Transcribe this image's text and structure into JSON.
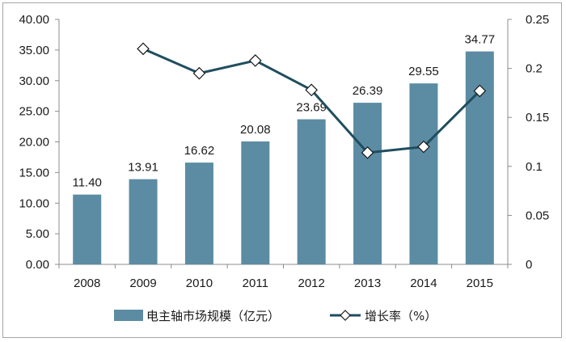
{
  "chart_data": {
    "type": "bar+line",
    "categories": [
      "2008",
      "2009",
      "2010",
      "2011",
      "2012",
      "2013",
      "2014",
      "2015"
    ],
    "series": [
      {
        "name": "电主轴市场规模（亿元）",
        "type": "bar",
        "axis": "left",
        "values": [
          11.4,
          13.91,
          16.62,
          20.08,
          23.69,
          26.39,
          29.55,
          34.77
        ],
        "labels": [
          "11.40",
          "13.91",
          "16.62",
          "20.08",
          "23.69",
          "26.39",
          "29.55",
          "34.77"
        ],
        "color": "#5b8ca3"
      },
      {
        "name": "增长率（%）",
        "type": "line",
        "axis": "right",
        "values": [
          null,
          0.22,
          0.195,
          0.208,
          0.178,
          0.114,
          0.12,
          0.177
        ],
        "color": "#1f4e5f"
      }
    ],
    "left_axis": {
      "ylim": [
        0,
        40
      ],
      "ticks": [
        "0.00",
        "5.00",
        "10.00",
        "15.00",
        "20.00",
        "25.00",
        "30.00",
        "35.00",
        "40.00"
      ]
    },
    "right_axis": {
      "ylim": [
        0,
        0.25
      ],
      "ticks": [
        "0",
        "0.05",
        "0.1",
        "0.15",
        "0.2",
        "0.25"
      ]
    },
    "grid": false,
    "legend": "bottom"
  }
}
